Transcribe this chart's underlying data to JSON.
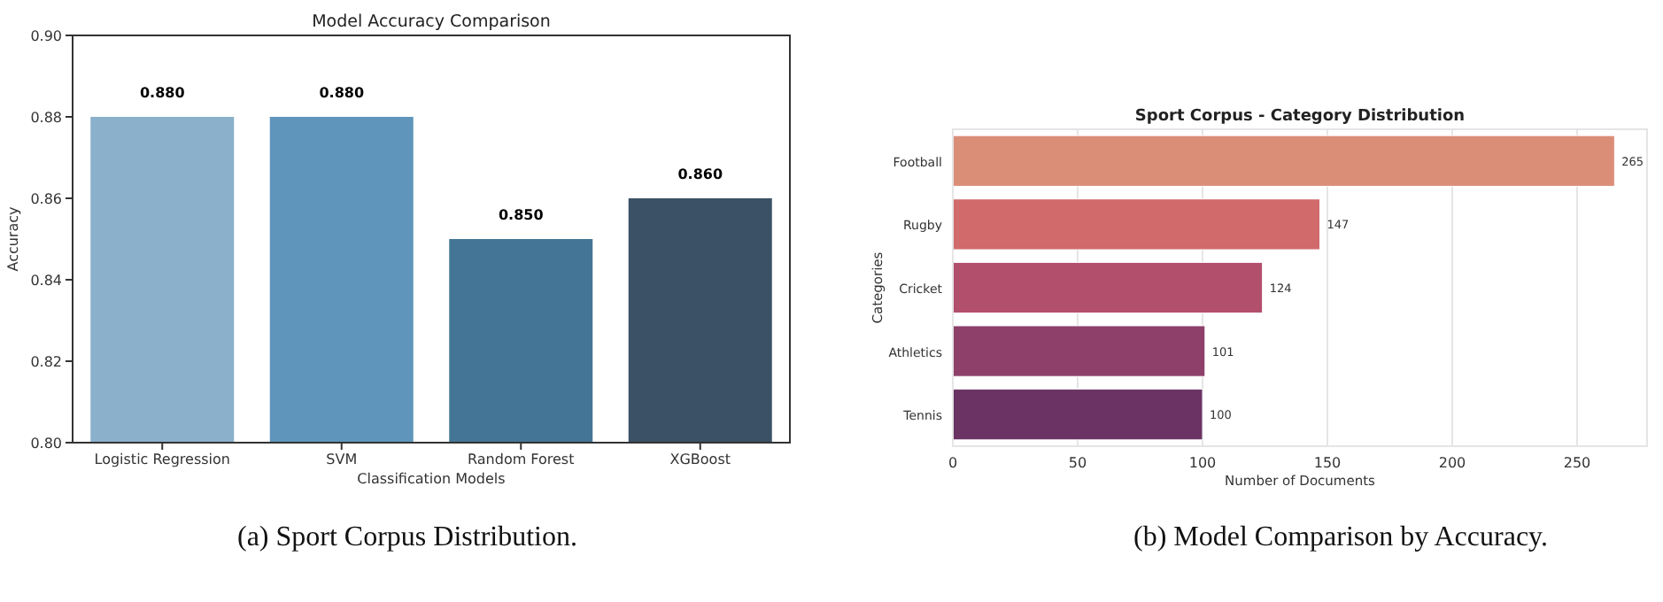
{
  "chart_data": [
    {
      "type": "bar",
      "title": "Model Accuracy Comparison",
      "xlabel": "Classification Models",
      "ylabel": "Accuracy",
      "categories": [
        "Logistic Regression",
        "SVM",
        "Random Forest",
        "XGBoost"
      ],
      "values": [
        0.88,
        0.88,
        0.85,
        0.86
      ],
      "colors": [
        "#8ab0cb",
        "#5f95bb",
        "#447596",
        "#3b5166"
      ],
      "value_labels": [
        "0.880",
        "0.880",
        "0.850",
        "0.860"
      ],
      "ylim": [
        0.8,
        0.9
      ],
      "yticks": [
        {
          "value": 0.8,
          "label": "0.80"
        },
        0.82,
        0.84,
        0.86,
        0.88,
        {
          "value": 0.9,
          "label": "0.90"
        }
      ],
      "grid": false,
      "annotations": [
        "(a) Sport Corpus Distribution."
      ]
    },
    {
      "type": "bar",
      "orientation": "horizontal",
      "title": "Sport Corpus - Category Distribution",
      "xlabel": "Number of Documents",
      "ylabel": "Categories",
      "categories": [
        "Football",
        "Rugby",
        "Cricket",
        "Athletics",
        "Tennis"
      ],
      "values": [
        265,
        147,
        124,
        101,
        100
      ],
      "colors": [
        "#db8e77",
        "#d06a6b",
        "#b24f6c",
        "#8e406b",
        "#6a3363"
      ],
      "data_labels": true,
      "xlim": [
        0,
        278
      ],
      "xticks": [
        0,
        50,
        100,
        150,
        200,
        250
      ],
      "grid": "x",
      "annotations": [
        "(b) Model Comparison by Accuracy."
      ]
    }
  ]
}
